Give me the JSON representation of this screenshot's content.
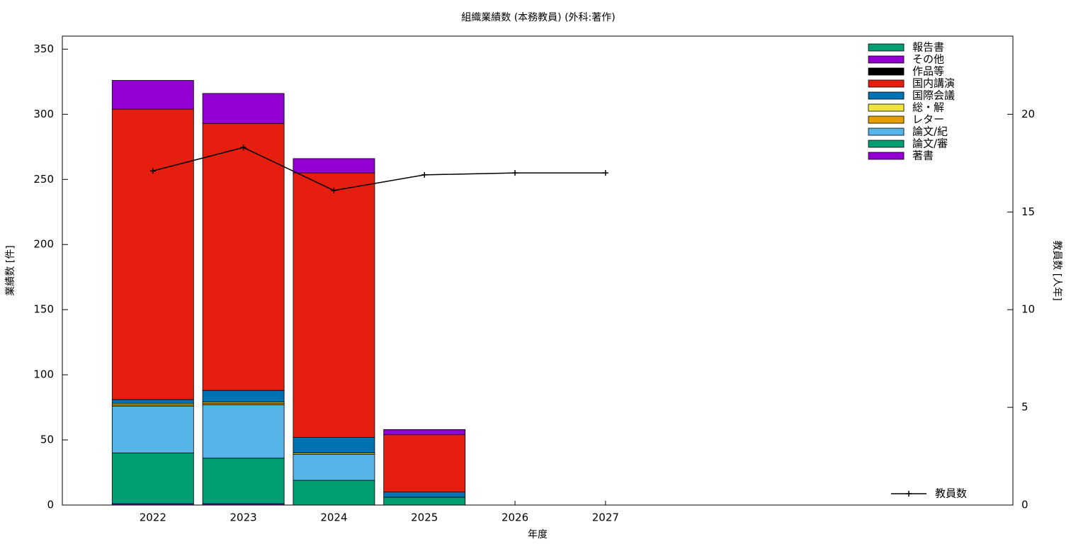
{
  "chart_data": {
    "type": "bar",
    "stacked": true,
    "title": "組織業績数 (本務教員) (外科:著作)",
    "x_label": "年度",
    "y_label": "業績数 [件]",
    "y2_label": "教員数 [人年]",
    "categories": [
      "2022",
      "2023",
      "2024",
      "2025",
      "2026",
      "2027"
    ],
    "series": [
      {
        "name": "著書",
        "color": "#9400d3",
        "values": [
          1,
          1,
          0,
          0,
          0,
          0
        ]
      },
      {
        "name": "論文/審",
        "color": "#009e73",
        "values": [
          39,
          35,
          19,
          6,
          0,
          0
        ]
      },
      {
        "name": "論文/紀",
        "color": "#56b4e9",
        "values": [
          36,
          41,
          20,
          0,
          0,
          0
        ]
      },
      {
        "name": "レター",
        "color": "#e69f00",
        "values": [
          1,
          1,
          0,
          0,
          0,
          0
        ]
      },
      {
        "name": "総・解",
        "color": "#f0e442",
        "values": [
          1,
          1,
          1,
          0,
          0,
          0
        ]
      },
      {
        "name": "国際会議",
        "color": "#0072b2",
        "values": [
          3,
          9,
          12,
          4,
          0,
          0
        ]
      },
      {
        "name": "国内講演",
        "color": "#e51e10",
        "values": [
          223,
          205,
          203,
          44,
          0,
          0
        ]
      },
      {
        "name": "作品等",
        "color": "#000000",
        "values": [
          0,
          0,
          0,
          0,
          0,
          0
        ]
      },
      {
        "name": "その他",
        "color": "#9400d3",
        "values": [
          22,
          23,
          11,
          4,
          0,
          0
        ]
      },
      {
        "name": "報告書",
        "color": "#009e73",
        "values": [
          0,
          0,
          0,
          0,
          0,
          0
        ]
      },
      {
        "name": "教員数",
        "color": "#000000",
        "type": "line",
        "axis": "y2",
        "values": [
          17.1,
          18.3,
          16.1,
          16.9,
          17.0,
          17.0
        ]
      }
    ],
    "ylim": [
      0,
      360
    ],
    "yticks": [
      0,
      50,
      100,
      150,
      200,
      250,
      300,
      350
    ],
    "y2lim": [
      0,
      24
    ],
    "y2ticks": [
      0,
      5,
      10,
      15,
      20
    ],
    "grid": false
  }
}
